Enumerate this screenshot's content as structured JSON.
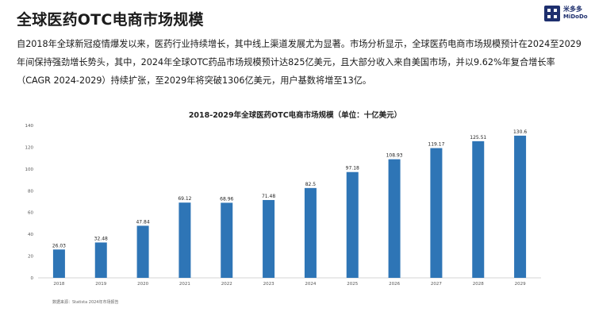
{
  "header": {
    "title": "全球医药OTC电商市场规模",
    "logo_cn": "米多多",
    "logo_en": "MiDoDo",
    "logo_color": "#1e2f6e"
  },
  "paragraph": "自2018年全球新冠疫情爆发以来，医药行业持续增长，其中线上渠道发展尤为显著。市场分析显示，全球医药电商市场规模预计在2024至2029年间保持强劲增长势头，其中，2024年全球OTC药品市场规模预计达825亿美元，且大部分收入来自美国市场，并以9.62%年复合增长率（CAGR 2024-2029）持续扩张，至2029年将突破1306亿美元，用户基数将增至13亿。",
  "chart_data": {
    "type": "bar",
    "title": "2018-2029年全球医药OTC电商市场规模（单位：十亿美元）",
    "categories": [
      "2018",
      "2019",
      "2020",
      "2021",
      "2022",
      "2023",
      "2024",
      "2025",
      "2026",
      "2027",
      "2028",
      "2029"
    ],
    "values": [
      26.03,
      32.48,
      47.84,
      69.12,
      68.96,
      71.48,
      82.5,
      97.18,
      108.93,
      119.17,
      125.51,
      130.6
    ],
    "labels": [
      "26.03",
      "32.48",
      "47.84",
      "69.12",
      "68.96",
      "71.48",
      "82.5",
      "97.18",
      "108.93",
      "119.17",
      "125.51",
      "130.6"
    ],
    "yticks": [
      "0",
      "20",
      "40",
      "60",
      "80",
      "100",
      "120",
      "140"
    ],
    "ylim": [
      0,
      140
    ],
    "grid": false,
    "bar_color": "#2e75b6"
  },
  "source": "数据来源：Statista 2024年市场报告"
}
